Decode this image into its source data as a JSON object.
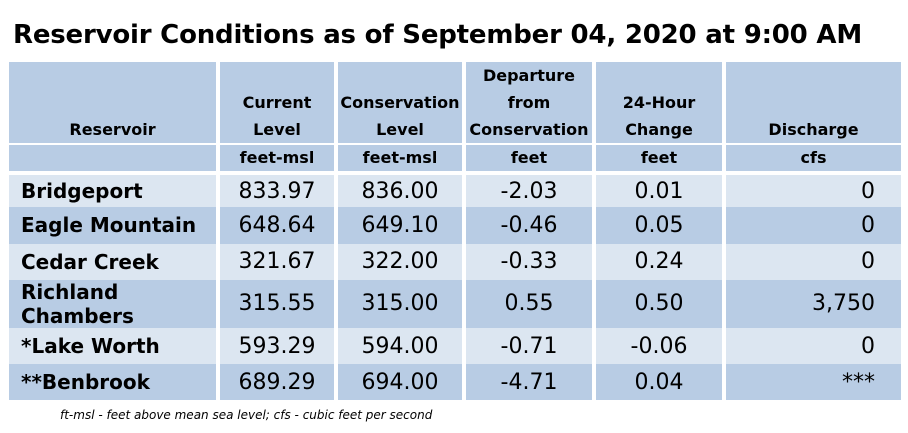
{
  "title": "Reservoir Conditions as of September 04, 2020 at 9:00 AM",
  "columns": [
    {
      "lines": [
        "Reservoir"
      ],
      "unit": ""
    },
    {
      "lines": [
        "Current",
        "Level"
      ],
      "unit": "feet-msl"
    },
    {
      "lines": [
        "Conservation",
        "Level"
      ],
      "unit": "feet-msl"
    },
    {
      "lines": [
        "Departure",
        "from",
        "Conservation"
      ],
      "unit": "feet"
    },
    {
      "lines": [
        "24-Hour",
        "Change"
      ],
      "unit": "feet"
    },
    {
      "lines": [
        "Discharge"
      ],
      "unit": "cfs"
    }
  ],
  "rows": [
    {
      "name": "Bridgeport",
      "current": "833.97",
      "conservation": "836.00",
      "departure": "-2.03",
      "change": "0.01",
      "discharge": "0"
    },
    {
      "name": "Eagle Mountain",
      "current": "648.64",
      "conservation": "649.10",
      "departure": "-0.46",
      "change": "0.05",
      "discharge": "0"
    },
    {
      "name": "Cedar Creek",
      "current": "321.67",
      "conservation": "322.00",
      "departure": "-0.33",
      "change": "0.24",
      "discharge": "0"
    },
    {
      "name": "Richland Chambers",
      "current": "315.55",
      "conservation": "315.00",
      "departure": "0.55",
      "change": "0.50",
      "discharge": "3,750"
    },
    {
      "name": "*Lake Worth",
      "current": "593.29",
      "conservation": "594.00",
      "departure": "-0.71",
      "change": "-0.06",
      "discharge": "0"
    },
    {
      "name": "**Benbrook",
      "current": "689.29",
      "conservation": "694.00",
      "departure": "-4.71",
      "change": "0.04",
      "discharge": "***"
    }
  ],
  "footnote": "ft-msl - feet above mean sea level; cfs - cubic feet per second",
  "colors": {
    "header_bg": "#b8cce4",
    "row_light": "#dce6f1",
    "row_dark": "#b8cce4"
  }
}
